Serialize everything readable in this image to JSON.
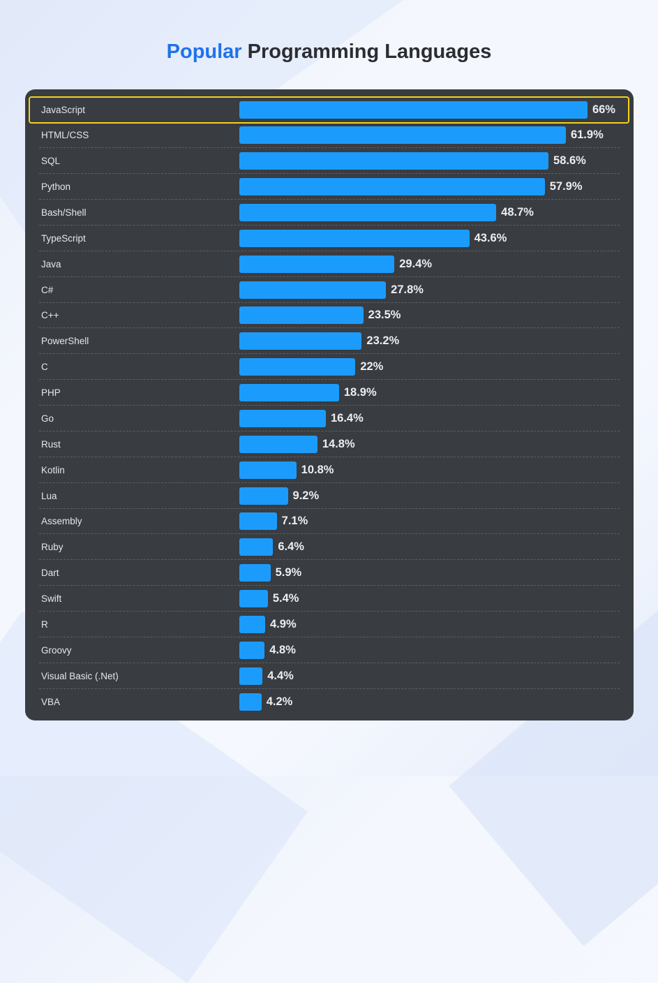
{
  "title": {
    "accent": "Popular",
    "rest": "Programming Languages"
  },
  "colors": {
    "accent": "#1f72ea",
    "bar": "#1b9cfc",
    "highlight": "#f4d21c",
    "panel": "#393c41"
  },
  "chart_data": {
    "type": "bar",
    "orientation": "horizontal",
    "title": "Popular Programming Languages",
    "unit": "%",
    "highlighted": "JavaScript",
    "categories": [
      "JavaScript",
      "HTML/CSS",
      "SQL",
      "Python",
      "Bash/Shell",
      "TypeScript",
      "Java",
      "C#",
      "C++",
      "PowerShell",
      "C",
      "PHP",
      "Go",
      "Rust",
      "Kotlin",
      "Lua",
      "Assembly",
      "Ruby",
      "Dart",
      "Swift",
      "R",
      "Groovy",
      "Visual Basic (.Net)",
      "VBA"
    ],
    "values": [
      66,
      61.9,
      58.6,
      57.9,
      48.7,
      43.6,
      29.4,
      27.8,
      23.5,
      23.2,
      22,
      18.9,
      16.4,
      14.8,
      10.8,
      9.2,
      7.1,
      6.4,
      5.9,
      5.4,
      4.9,
      4.8,
      4.4,
      4.2
    ],
    "value_labels": [
      "66%",
      "61.9%",
      "58.6%",
      "57.9%",
      "48.7%",
      "43.6%",
      "29.4%",
      "27.8%",
      "23.5%",
      "23.2%",
      "22%",
      "18.9%",
      "16.4%",
      "14.8%",
      "10.8%",
      "9.2%",
      "7.1%",
      "6.4%",
      "5.9%",
      "5.4%",
      "4.9%",
      "4.8%",
      "4.4%",
      "4.2%"
    ]
  }
}
